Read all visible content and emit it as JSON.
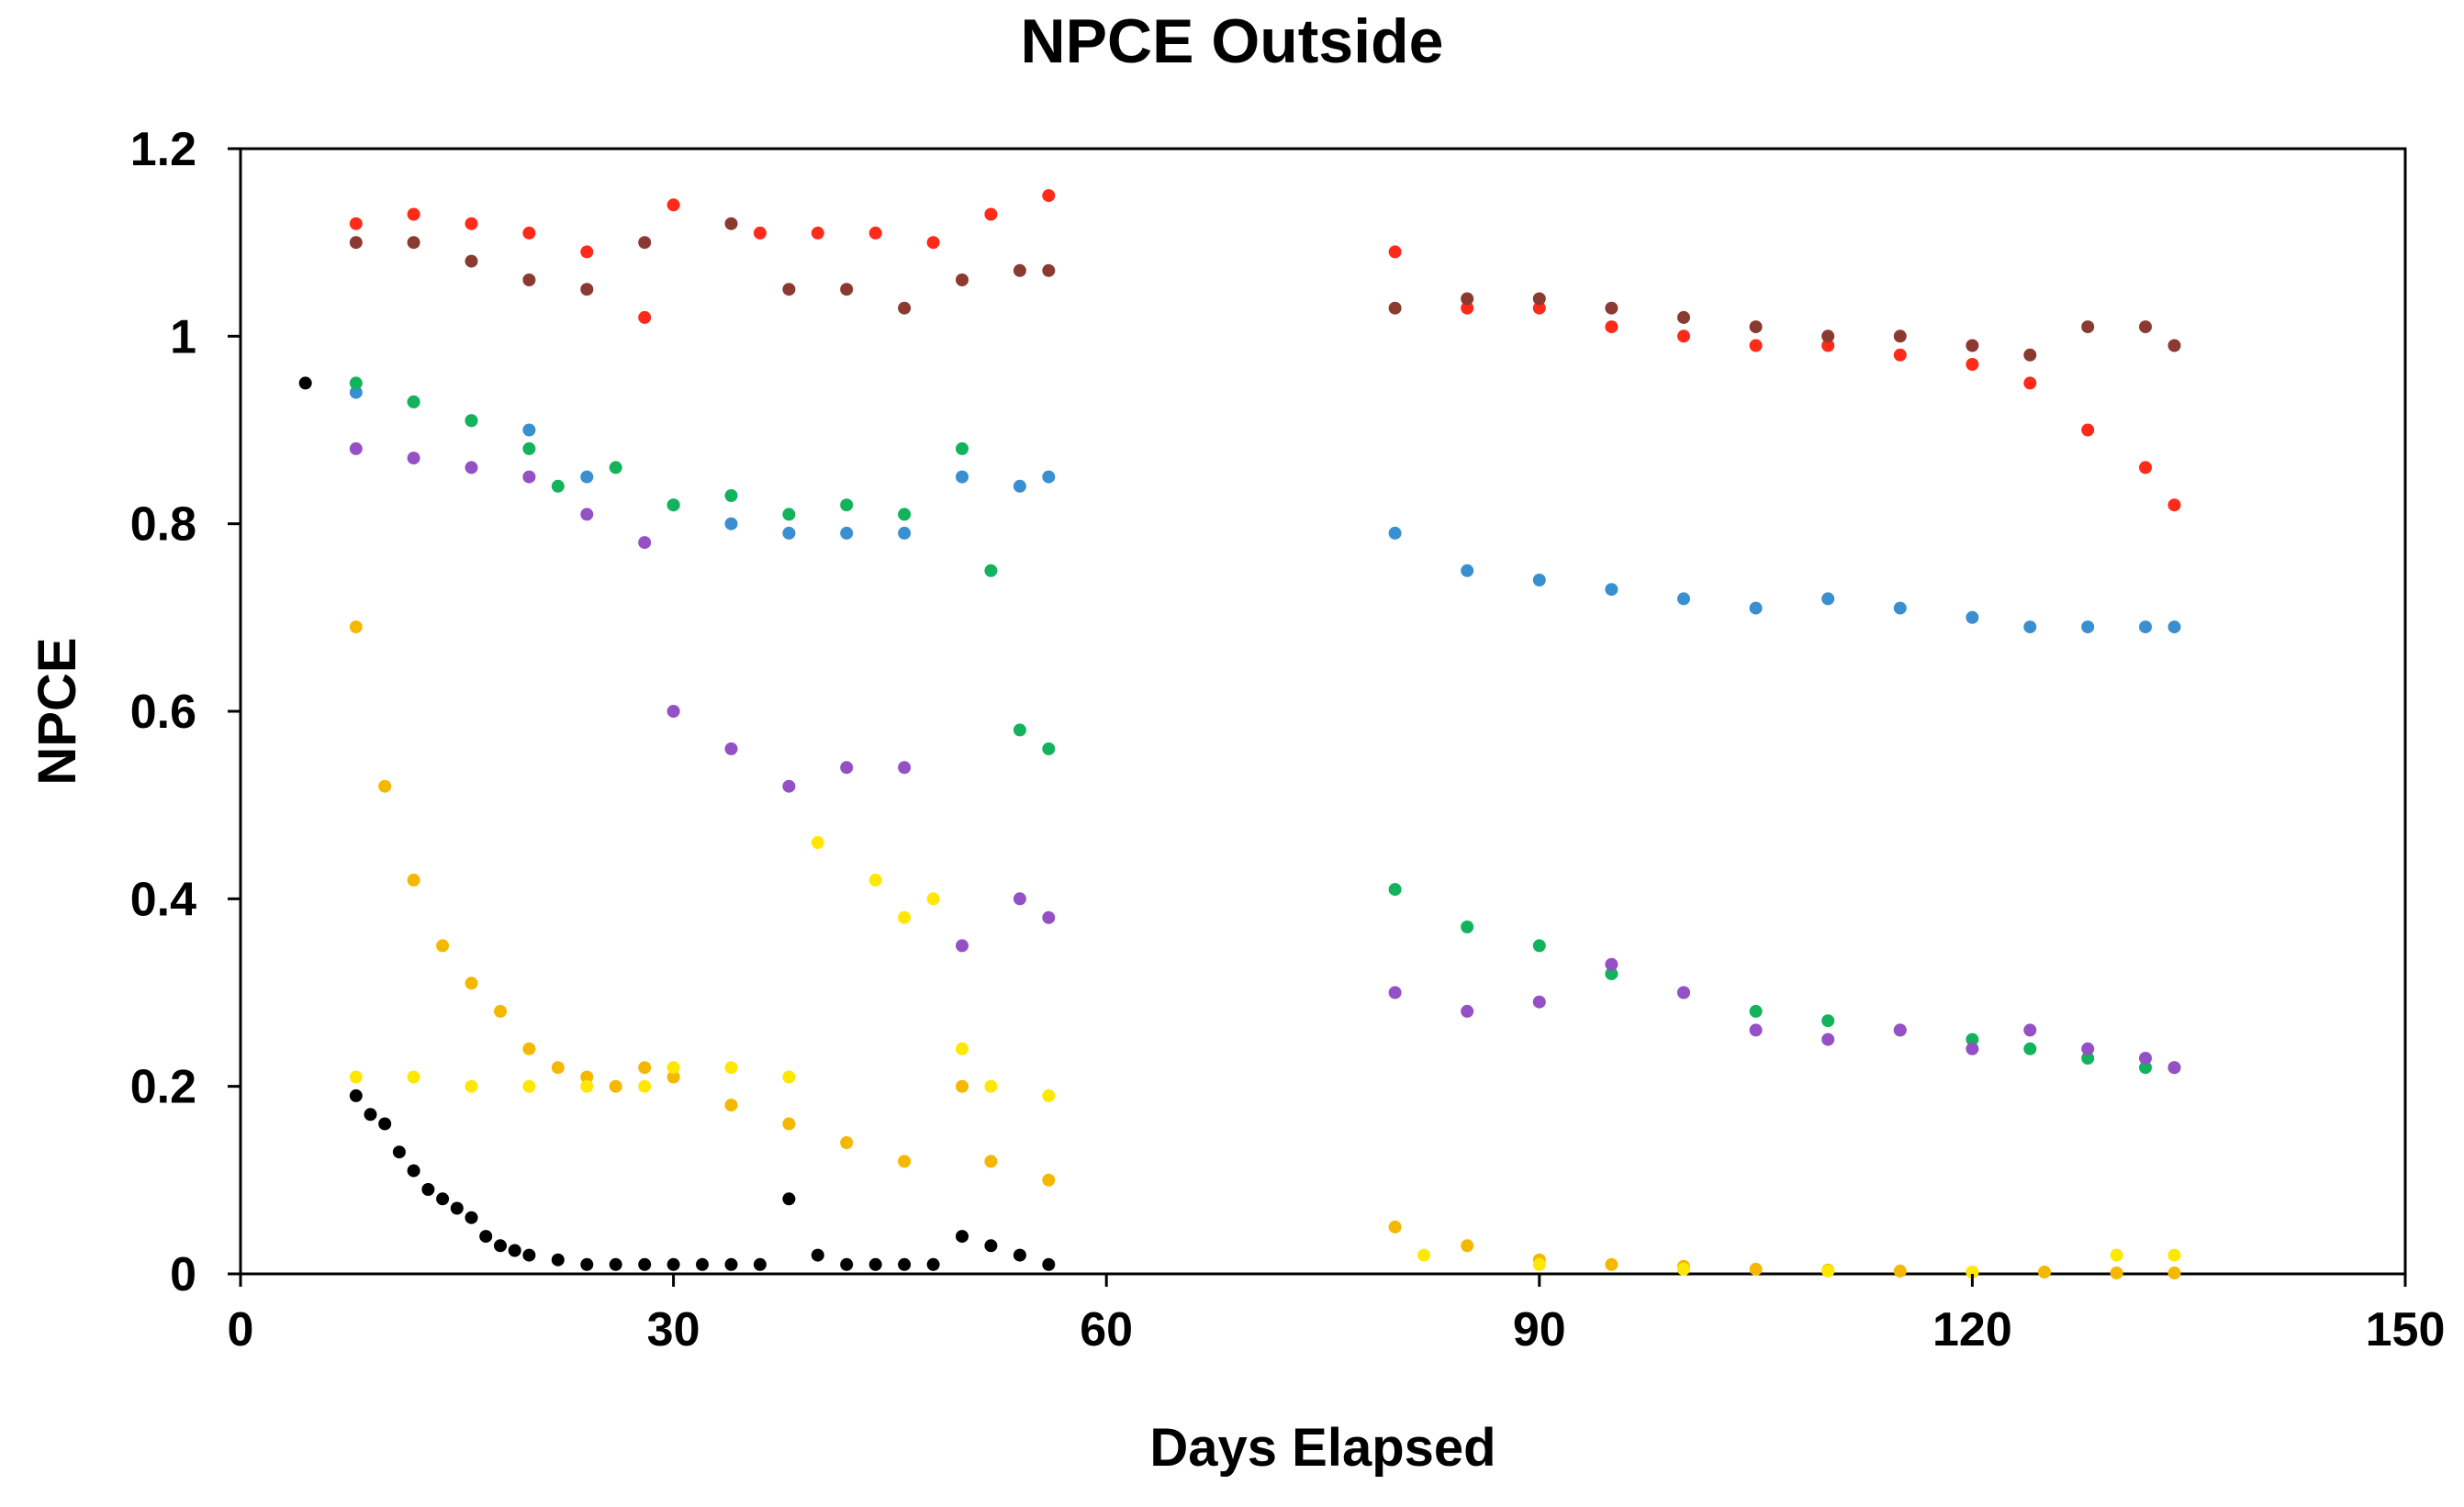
{
  "chart_data": {
    "type": "scatter",
    "title": "NPCE Outside",
    "xlabel": "Days Elapsed",
    "ylabel": "NPCE",
    "xlim": [
      0,
      150
    ],
    "ylim": [
      0,
      1.2
    ],
    "x_ticks": [
      0,
      30,
      60,
      90,
      120,
      150
    ],
    "y_ticks": [
      0,
      0.2,
      0.4,
      0.6,
      0.8,
      1.0,
      1.2
    ],
    "x_tick_labels": [
      "0",
      "30",
      "60",
      "90",
      "120",
      "150"
    ],
    "y_tick_labels": [
      "0",
      "0.2",
      "0.4",
      "0.6",
      "0.8",
      "1",
      "1.2"
    ],
    "grid": false,
    "legend": "none",
    "series": [
      {
        "name": "Red",
        "color": "#ff2a1a",
        "x": [
          8,
          12,
          16,
          20,
          24,
          28,
          30,
          36,
          40,
          44,
          48,
          52,
          56,
          80,
          85,
          90,
          95,
          100,
          105,
          110,
          115,
          120,
          124,
          128,
          132,
          134
        ],
        "y": [
          1.12,
          1.13,
          1.12,
          1.11,
          1.09,
          1.02,
          1.14,
          1.11,
          1.11,
          1.11,
          1.1,
          1.13,
          1.15,
          1.09,
          1.03,
          1.03,
          1.01,
          1.0,
          0.99,
          0.99,
          0.98,
          0.97,
          0.95,
          0.9,
          0.86,
          0.82
        ]
      },
      {
        "name": "Brown",
        "color": "#8b3a32",
        "x": [
          8,
          12,
          16,
          20,
          24,
          28,
          34,
          38,
          42,
          46,
          50,
          54,
          56,
          80,
          85,
          90,
          95,
          100,
          105,
          110,
          115,
          120,
          124,
          128,
          132,
          134
        ],
        "y": [
          1.1,
          1.1,
          1.08,
          1.06,
          1.05,
          1.1,
          1.12,
          1.05,
          1.05,
          1.03,
          1.06,
          1.07,
          1.07,
          1.03,
          1.04,
          1.04,
          1.03,
          1.02,
          1.01,
          1.0,
          1.0,
          0.99,
          0.98,
          1.01,
          1.01,
          0.99
        ]
      },
      {
        "name": "Blue",
        "color": "#3a8fd0",
        "x": [
          8,
          12,
          16,
          20,
          24,
          30,
          34,
          38,
          42,
          46,
          50,
          54,
          56,
          80,
          85,
          90,
          95,
          100,
          105,
          110,
          115,
          120,
          124,
          128,
          132,
          134
        ],
        "y": [
          0.94,
          0.93,
          0.91,
          0.9,
          0.85,
          0.82,
          0.8,
          0.79,
          0.79,
          0.79,
          0.85,
          0.84,
          0.85,
          0.79,
          0.75,
          0.74,
          0.73,
          0.72,
          0.71,
          0.72,
          0.71,
          0.7,
          0.69,
          0.69,
          0.69,
          0.69
        ]
      },
      {
        "name": "Green",
        "color": "#12b35c",
        "x": [
          8,
          12,
          16,
          20,
          22,
          26,
          30,
          34,
          38,
          42,
          46,
          50,
          52,
          54,
          56,
          80,
          85,
          90,
          95,
          100,
          105,
          110,
          115,
          120,
          124,
          128,
          132,
          134
        ],
        "y": [
          0.95,
          0.93,
          0.91,
          0.88,
          0.84,
          0.86,
          0.82,
          0.83,
          0.81,
          0.82,
          0.81,
          0.88,
          0.75,
          0.58,
          0.56,
          0.41,
          0.37,
          0.35,
          0.32,
          0.3,
          0.28,
          0.27,
          0.26,
          0.25,
          0.24,
          0.23,
          0.22,
          0.22
        ]
      },
      {
        "name": "Purple",
        "color": "#9450c4",
        "x": [
          8,
          12,
          16,
          20,
          24,
          28,
          30,
          34,
          38,
          42,
          46,
          50,
          54,
          56,
          80,
          85,
          90,
          95,
          100,
          105,
          110,
          115,
          120,
          124,
          128,
          132,
          134
        ],
        "y": [
          0.88,
          0.87,
          0.86,
          0.85,
          0.81,
          0.78,
          0.6,
          0.56,
          0.52,
          0.54,
          0.54,
          0.35,
          0.4,
          0.38,
          0.3,
          0.28,
          0.29,
          0.33,
          0.3,
          0.26,
          0.25,
          0.26,
          0.24,
          0.26,
          0.24,
          0.23,
          0.22
        ]
      },
      {
        "name": "Orange",
        "color": "#f5b800",
        "x": [
          8,
          10,
          12,
          14,
          16,
          18,
          20,
          22,
          24,
          26,
          28,
          30,
          34,
          38,
          42,
          46,
          50,
          52,
          56,
          80,
          85,
          90,
          95,
          100,
          105,
          110,
          115,
          120,
          125,
          130,
          134
        ],
        "y": [
          0.69,
          0.52,
          0.42,
          0.35,
          0.31,
          0.28,
          0.24,
          0.22,
          0.21,
          0.2,
          0.22,
          0.21,
          0.18,
          0.16,
          0.14,
          0.12,
          0.2,
          0.12,
          0.1,
          0.05,
          0.03,
          0.015,
          0.01,
          0.008,
          0.005,
          0.004,
          0.003,
          0.002,
          0.002,
          0.001,
          0.001
        ]
      },
      {
        "name": "Yellow",
        "color": "#ffe800",
        "x": [
          8,
          12,
          16,
          20,
          24,
          28,
          30,
          34,
          38,
          40,
          44,
          46,
          48,
          50,
          52,
          56,
          82,
          90,
          100,
          110,
          120,
          130,
          134
        ],
        "y": [
          0.21,
          0.21,
          0.2,
          0.2,
          0.2,
          0.2,
          0.22,
          0.22,
          0.21,
          0.46,
          0.42,
          0.38,
          0.4,
          0.24,
          0.2,
          0.19,
          0.02,
          0.01,
          0.005,
          0.003,
          0.002,
          0.02,
          0.02
        ]
      },
      {
        "name": "Black",
        "color": "#000000",
        "x": [
          4.5,
          8,
          9,
          10,
          11,
          12,
          13,
          14,
          15,
          16,
          17,
          18,
          19,
          20,
          22,
          24,
          26,
          28,
          30,
          32,
          34,
          36,
          38,
          40,
          42,
          44,
          46,
          48,
          50,
          52,
          54,
          56
        ],
        "y": [
          0.95,
          0.19,
          0.17,
          0.16,
          0.13,
          0.11,
          0.09,
          0.08,
          0.07,
          0.06,
          0.04,
          0.03,
          0.025,
          0.02,
          0.015,
          0.01,
          0.01,
          0.01,
          0.01,
          0.01,
          0.01,
          0.01,
          0.08,
          0.02,
          0.01,
          0.01,
          0.01,
          0.01,
          0.04,
          0.03,
          0.02,
          0.01
        ]
      }
    ]
  }
}
